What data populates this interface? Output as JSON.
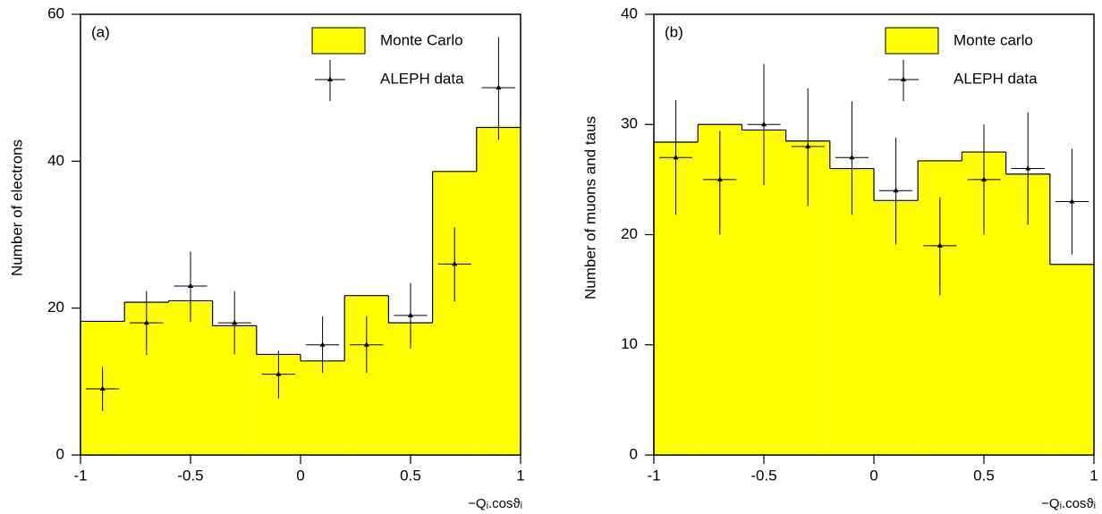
{
  "chart_data": [
    {
      "type": "histogram",
      "label": "(a)",
      "y_label": "Number of electrons",
      "x_label": "−Qᵢ.cosϑᵢ",
      "bins": [
        -1,
        -0.8,
        -0.6,
        -0.4,
        -0.2,
        0,
        0.2,
        0.4,
        0.6,
        0.8,
        1
      ],
      "xlim": [
        -1,
        1
      ],
      "xticks": [
        -1,
        -0.5,
        0,
        0.5,
        1
      ],
      "ylim": [
        0,
        60
      ],
      "yticks": [
        0,
        20,
        40,
        60
      ],
      "legend": "top-right",
      "series": [
        {
          "name": "Monte Carlo",
          "color": "#ffff00",
          "values": [
            18.2,
            20.8,
            21,
            17.6,
            13.7,
            12.8,
            21.7,
            18,
            38.6,
            44.6
          ]
        },
        {
          "name": "ALEPH data",
          "color": "#000000",
          "x": [
            -0.9,
            -0.7,
            -0.5,
            -0.3,
            -0.1,
            0.1,
            0.3,
            0.5,
            0.7,
            0.9
          ],
          "values": [
            9,
            18,
            23,
            18,
            11,
            15,
            15,
            19,
            26,
            50
          ],
          "err_minus": [
            3,
            4.4,
            4.9,
            4.3,
            3.3,
            3.8,
            3.8,
            4.5,
            5.1,
            7.1
          ],
          "err_plus": [
            3,
            4.3,
            4.7,
            4.3,
            3.2,
            3.9,
            3.9,
            4.4,
            5,
            6.9
          ]
        }
      ]
    },
    {
      "type": "histogram",
      "label": "(b)",
      "y_label": "Number of muons and taus",
      "x_label": "−Qᵢ.cosϑᵢ",
      "bins": [
        -1,
        -0.8,
        -0.6,
        -0.4,
        -0.2,
        0,
        0.2,
        0.4,
        0.6,
        0.8,
        1
      ],
      "xlim": [
        -1,
        1
      ],
      "xticks": [
        -1,
        -0.5,
        0,
        0.5,
        1
      ],
      "ylim": [
        0,
        40
      ],
      "yticks": [
        0,
        10,
        20,
        30,
        40
      ],
      "legend": "top-right",
      "series": [
        {
          "name": "Monte carlo",
          "color": "#ffff00",
          "values": [
            28.4,
            30,
            29.5,
            28.5,
            26,
            23.1,
            26.7,
            27.5,
            25.5,
            17.3
          ]
        },
        {
          "name": "ALEPH data",
          "color": "#000000",
          "x": [
            -0.9,
            -0.7,
            -0.5,
            -0.3,
            -0.1,
            0.1,
            0.3,
            0.5,
            0.7,
            0.9
          ],
          "values": [
            27,
            25,
            30,
            28,
            27,
            24,
            19,
            25,
            26,
            23
          ],
          "err_minus": [
            5.2,
            5,
            5.5,
            5.4,
            5.2,
            4.9,
            4.5,
            5,
            5.1,
            4.8
          ],
          "err_plus": [
            5.2,
            4.4,
            5.5,
            5.3,
            5.1,
            4.8,
            4.4,
            5,
            5.1,
            4.8
          ]
        }
      ]
    }
  ]
}
